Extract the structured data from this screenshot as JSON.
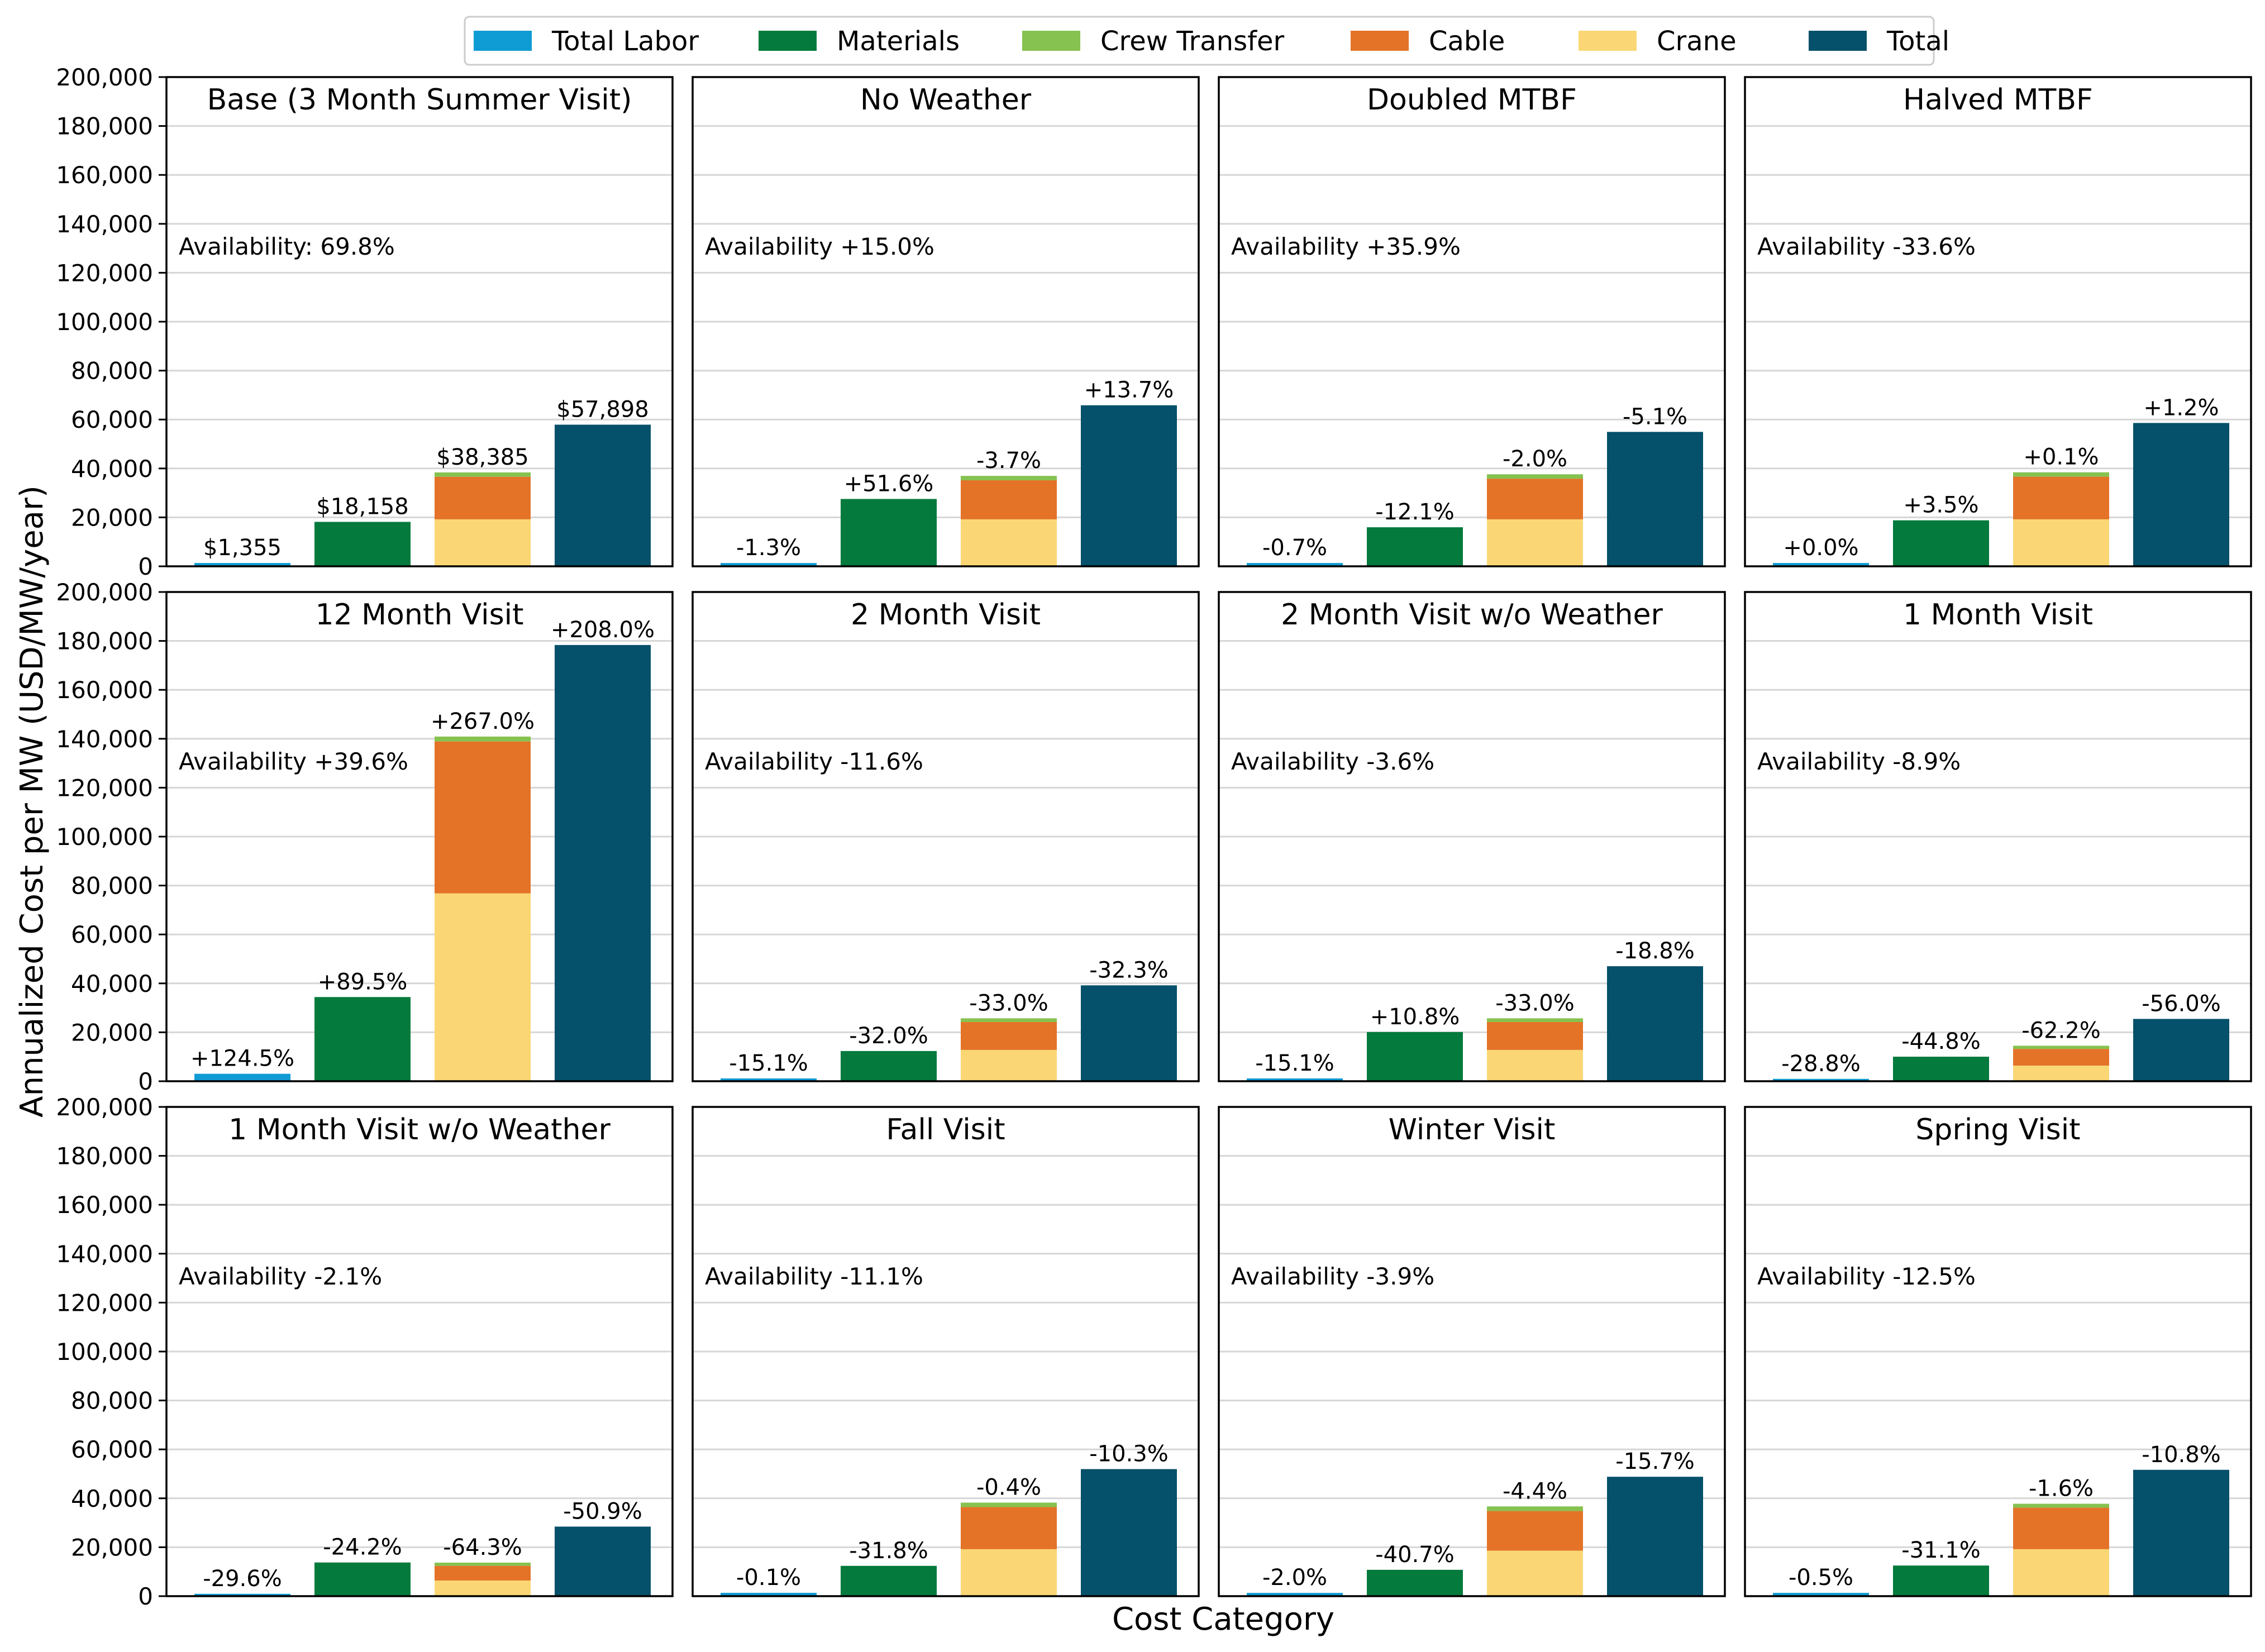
{
  "colors": {
    "labor": "#0f9bd3",
    "materials": "#047a3c",
    "crew": "#86c250",
    "cable": "#e47328",
    "crane": "#fad774",
    "total": "#05506a"
  },
  "chart_data": {
    "type": "bar",
    "stacked": true,
    "ylabel": "Annualized Cost per MW (USD/MW/year)",
    "xlabel": "Cost Category",
    "ylim": [
      0,
      200000
    ],
    "yticks": [
      "0",
      "20,000",
      "40,000",
      "60,000",
      "80,000",
      "100,000",
      "120,000",
      "140,000",
      "160,000",
      "180,000",
      "200,000"
    ],
    "grid": true,
    "legend_position": "top-center",
    "legend": [
      {
        "key": "labor",
        "label": "Total Labor"
      },
      {
        "key": "materials",
        "label": "Materials"
      },
      {
        "key": "crew",
        "label": "Crew Transfer"
      },
      {
        "key": "cable",
        "label": "Cable"
      },
      {
        "key": "crane",
        "label": "Crane"
      },
      {
        "key": "total",
        "label": "Total"
      }
    ],
    "panels": [
      {
        "title": "Base (3 Month Summer Visit)",
        "availability": "Availability: 69.8%",
        "labor": 1355,
        "materials": 18158,
        "crane": 19200,
        "cable": 17385,
        "crew": 1800,
        "total": 57898,
        "labels": [
          "$1,355",
          "$18,158",
          "$38,385",
          "$57,898"
        ]
      },
      {
        "title": "No Weather",
        "availability": "Availability +15.0%",
        "labor": 1337,
        "materials": 27528,
        "crane": 19200,
        "cable": 15970,
        "crew": 1800,
        "total": 65830,
        "labels": [
          "-1.3%",
          "+51.6%",
          "-3.7%",
          "+13.7%"
        ]
      },
      {
        "title": "Doubled MTBF",
        "availability": "Availability +35.9%",
        "labor": 1346,
        "materials": 15961,
        "crane": 19200,
        "cable": 16617,
        "crew": 1800,
        "total": 54945,
        "labels": [
          "-0.7%",
          "-12.1%",
          "-2.0%",
          "-5.1%"
        ]
      },
      {
        "title": "Halved MTBF",
        "availability": "Availability -33.6%",
        "labor": 1355,
        "materials": 18794,
        "crane": 19200,
        "cable": 17424,
        "crew": 1800,
        "total": 58593,
        "labels": [
          "+0.0%",
          "+3.5%",
          "+0.1%",
          "+1.2%"
        ]
      },
      {
        "title": "12 Month Visit",
        "availability": "Availability +39.6%",
        "labor": 3042,
        "materials": 34409,
        "crane": 76800,
        "cable": 62100,
        "crew": 2000,
        "total": 178326,
        "labels": [
          "+124.5%",
          "+89.5%",
          "+267.0%",
          "+208.0%"
        ]
      },
      {
        "title": "2 Month Visit",
        "availability": "Availability -11.6%",
        "labor": 1150,
        "materials": 12347,
        "crane": 12800,
        "cable": 11418,
        "crew": 1500,
        "total": 39199,
        "labels": [
          "-15.1%",
          "-32.0%",
          "-33.0%",
          "-32.3%"
        ]
      },
      {
        "title": "2 Month Visit w/o Weather",
        "availability": "Availability -3.6%",
        "labor": 1150,
        "materials": 20119,
        "crane": 12800,
        "cable": 11418,
        "crew": 1500,
        "total": 47013,
        "labels": [
          "-15.1%",
          "+10.8%",
          "-33.0%",
          "-18.8%"
        ]
      },
      {
        "title": "1 Month Visit",
        "availability": "Availability -8.9%",
        "labor": 965,
        "materials": 10023,
        "crane": 6400,
        "cable": 6810,
        "crew": 1300,
        "total": 25475,
        "labels": [
          "-28.8%",
          "-44.8%",
          "-62.2%",
          "-56.0%"
        ]
      },
      {
        "title": "1 Month Visit w/o Weather",
        "availability": "Availability -2.1%",
        "labor": 954,
        "materials": 13764,
        "crane": 6400,
        "cable": 6004,
        "crew": 1300,
        "total": 28431,
        "labels": [
          "-29.6%",
          "-24.2%",
          "-64.3%",
          "-50.9%"
        ]
      },
      {
        "title": "Fall Visit",
        "availability": "Availability -11.1%",
        "labor": 1354,
        "materials": 12384,
        "crane": 19200,
        "cable": 17231,
        "crew": 1800,
        "total": 51936,
        "labels": [
          "-0.1%",
          "-31.8%",
          "-0.4%",
          "-10.3%"
        ]
      },
      {
        "title": "Winter Visit",
        "availability": "Availability -3.9%",
        "labor": 1328,
        "materials": 10768,
        "crane": 18600,
        "cable": 16197,
        "crew": 1900,
        "total": 48806,
        "labels": [
          "-2.0%",
          "-40.7%",
          "-4.4%",
          "-15.7%"
        ]
      },
      {
        "title": "Spring Visit",
        "availability": "Availability -12.5%",
        "labor": 1348,
        "materials": 12511,
        "crane": 19200,
        "cable": 16971,
        "crew": 1600,
        "total": 51645,
        "labels": [
          "-0.5%",
          "-31.1%",
          "-1.6%",
          "-10.8%"
        ]
      }
    ]
  }
}
